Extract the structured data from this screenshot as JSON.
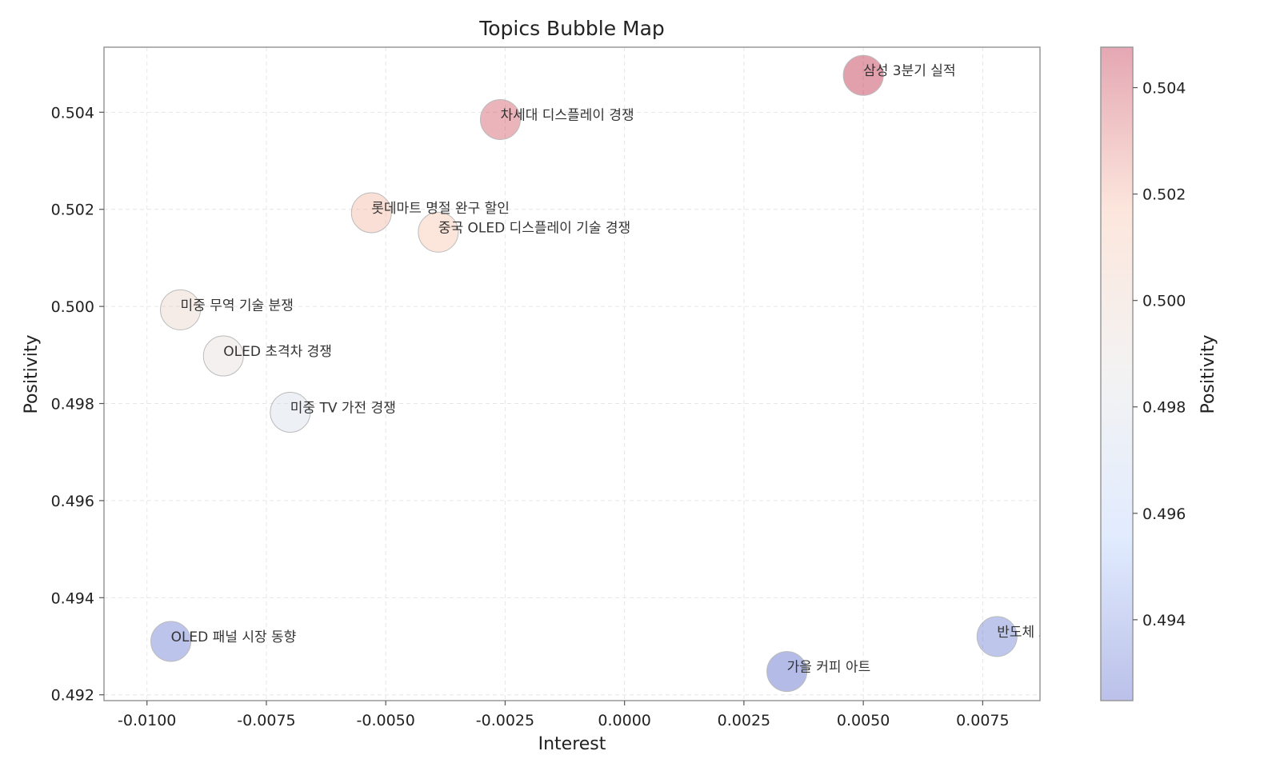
{
  "chart_data": {
    "type": "scatter",
    "title": "Topics Bubble Map",
    "xlabel": "Interest",
    "ylabel": "Positivity",
    "xlim": [
      -0.0109,
      0.0087
    ],
    "ylim": [
      0.49188,
      0.50534
    ],
    "x_ticks": [
      {
        "value": -0.01,
        "label": "-0.0100"
      },
      {
        "value": -0.0075,
        "label": "-0.0075"
      },
      {
        "value": -0.005,
        "label": "-0.0050"
      },
      {
        "value": -0.0025,
        "label": "-0.0025"
      },
      {
        "value": 0.0,
        "label": "0.0000"
      },
      {
        "value": 0.0025,
        "label": "0.0025"
      },
      {
        "value": 0.005,
        "label": "0.0050"
      },
      {
        "value": 0.0075,
        "label": "0.0075"
      }
    ],
    "y_ticks": [
      {
        "value": 0.492,
        "label": "0.492"
      },
      {
        "value": 0.494,
        "label": "0.494"
      },
      {
        "value": 0.496,
        "label": "0.496"
      },
      {
        "value": 0.498,
        "label": "0.498"
      },
      {
        "value": 0.5,
        "label": "0.500"
      },
      {
        "value": 0.502,
        "label": "0.502"
      },
      {
        "value": 0.504,
        "label": "0.504"
      }
    ],
    "grid": true,
    "colormap": "coolwarm",
    "colorbar": {
      "label": "Positivity",
      "range": [
        0.49248,
        0.50476
      ],
      "ticks": [
        {
          "value": 0.494,
          "label": "0.494"
        },
        {
          "value": 0.496,
          "label": "0.496"
        },
        {
          "value": 0.498,
          "label": "0.498"
        },
        {
          "value": 0.5,
          "label": "0.500"
        },
        {
          "value": 0.502,
          "label": "0.502"
        },
        {
          "value": 0.504,
          "label": "0.504"
        }
      ]
    },
    "points": [
      {
        "label": "삼성 3분기 실적",
        "x": 0.005,
        "y": 0.50476
      },
      {
        "label": "차세대 디스플레이 경쟁",
        "x": -0.0026,
        "y": 0.50385
      },
      {
        "label": "롯데마트 명절 완구 할인",
        "x": -0.0053,
        "y": 0.50193
      },
      {
        "label": "중국 OLED 디스플레이 기술 경쟁",
        "x": -0.0039,
        "y": 0.50153
      },
      {
        "label": "미중 무역 기술 분쟁",
        "x": -0.0093,
        "y": 0.49993
      },
      {
        "label": "OLED 초격차 경쟁",
        "x": -0.0084,
        "y": 0.49898
      },
      {
        "label": "미중 TV 가전 경쟁",
        "x": -0.007,
        "y": 0.49782
      },
      {
        "label": "OLED 패널 시장 동향",
        "x": -0.0095,
        "y": 0.4931
      },
      {
        "label": "가을 커피 아트",
        "x": 0.0034,
        "y": 0.49248
      },
      {
        "label": "반도체 AI 장비 경",
        "x": 0.0078,
        "y": 0.4932
      }
    ]
  }
}
